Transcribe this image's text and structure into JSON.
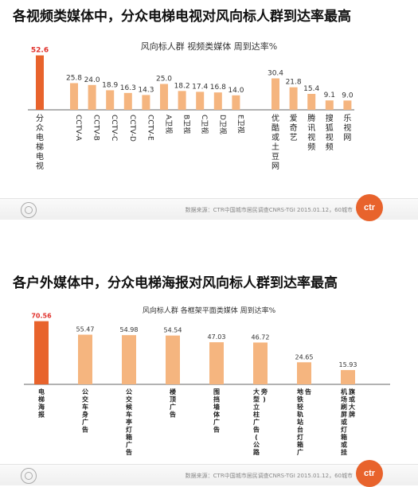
{
  "panels": [
    {
      "heading": "各视频类媒体中，分众电梯电视对风向标人群到达率最高",
      "source": "数据来源：CTR中国城市居民调查CNRS-TGI 2015.01.12，60城市",
      "logo_text": "ctr"
    },
    {
      "heading": "各户外媒体中，分众电梯海报对风向标人群到达率最高",
      "source": "数据来源：CTR中国城市居民调查CNRS-TGI 2015.01.12，60城市",
      "logo_text": "ctr"
    }
  ],
  "colors": {
    "highlight": "#e8632c",
    "bar": "#f5b57f",
    "value_highlight": "#e0302a",
    "value": "#333333",
    "axis": "#666666"
  },
  "chart_data": [
    {
      "type": "bar",
      "title": "风向标人群 视频类媒体 周到达率%",
      "xlabel": "",
      "ylabel": "",
      "ylim": [
        0,
        60
      ],
      "highlight_index": 0,
      "groups": [
        [
          0
        ],
        [
          1,
          2,
          3,
          4,
          5
        ],
        [
          6,
          7,
          8,
          9,
          10
        ],
        [
          11,
          12,
          13,
          14,
          15
        ]
      ],
      "categories": [
        "分众电梯电视",
        "CCTV-A",
        "CCTV-B",
        "CCTV-C",
        "CCTV-D",
        "CCTV-E",
        "A卫视",
        "B卫视",
        "C卫视",
        "D卫视",
        "E卫视",
        "优酷或土豆网",
        "爱奇艺",
        "腾讯视频",
        "搜狐视频",
        "乐视网"
      ],
      "values": [
        52.6,
        25.8,
        24.0,
        18.9,
        16.3,
        14.3,
        25.0,
        18.2,
        17.4,
        16.8,
        14.0,
        30.4,
        21.8,
        15.4,
        9.1,
        9.0
      ],
      "value_labels": [
        "52.6",
        "25.8",
        "24.0",
        "18.9",
        "16.3",
        "14.3",
        "25.0",
        "18.2",
        "17.4",
        "16.8",
        "14.0",
        "30.4",
        "21.8",
        "15.4",
        "9.1",
        "9.0"
      ]
    },
    {
      "type": "bar",
      "title": "风向标人群 各框架平面类媒体 周到达率%",
      "xlabel": "",
      "ylabel": "",
      "ylim": [
        0,
        80
      ],
      "highlight_index": 0,
      "categories": [
        "电梯海报",
        "公交车身广告",
        "公交候车亭灯箱广告",
        "楼顶广告",
        "围挡墙体广告",
        "大型立柱广告(公路旁)",
        "地铁轻轨站台灯箱广告",
        "机场刷屏或灯箱或挂旗或大牌"
      ],
      "values": [
        70.56,
        55.47,
        54.98,
        54.54,
        47.03,
        46.72,
        24.65,
        15.93
      ],
      "value_labels": [
        "70.56",
        "55.47",
        "54.98",
        "54.54",
        "47.03",
        "46.72",
        "24.65",
        "15.93"
      ]
    }
  ]
}
